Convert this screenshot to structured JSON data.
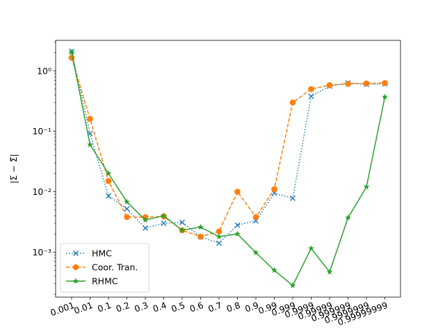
{
  "chart_data": {
    "type": "line",
    "title": "",
    "xlabel": "",
    "ylabel": "|Σ − Σ̂|",
    "yscale": "log",
    "ylim": [
      0.00018,
      3.2
    ],
    "y_ticks": [
      {
        "value": 0.001,
        "label": "10⁻³"
      },
      {
        "value": 0.01,
        "label": "10⁻²"
      },
      {
        "value": 0.1,
        "label": "10⁻¹"
      },
      {
        "value": 1,
        "label": "10⁰"
      }
    ],
    "categories": [
      "0.001",
      "0.01",
      "0.1",
      "0.2",
      "0.3",
      "0.4",
      "0.5",
      "0.6",
      "0.7",
      "0.8",
      "0.9",
      "0.99",
      "0.999",
      "0.9999",
      "0.99999",
      "0.999999",
      "0.9999999",
      "0.99999999"
    ],
    "legend_position": "lower-left",
    "grid": false,
    "series": [
      {
        "name": "HMC",
        "color": "#1f77b4",
        "linestyle": "dotted",
        "marker": "x",
        "values": [
          2.1,
          0.092,
          0.0085,
          0.0052,
          0.0025,
          0.003,
          0.0031,
          0.0018,
          0.0014,
          0.0028,
          0.0033,
          0.0095,
          0.0078,
          0.38,
          0.56,
          0.63,
          0.6,
          0.61
        ]
      },
      {
        "name": "Coor. Tran.",
        "color": "#ff7f0e",
        "linestyle": "dashed",
        "marker": "o",
        "values": [
          1.65,
          0.16,
          0.015,
          0.0038,
          0.0038,
          0.0039,
          0.0023,
          0.0018,
          0.0022,
          0.01,
          0.0038,
          0.011,
          0.3,
          0.5,
          0.58,
          0.61,
          0.62,
          0.63
        ]
      },
      {
        "name": "RHMC",
        "color": "#2ca02c",
        "linestyle": "solid",
        "marker": "*",
        "values": [
          2.05,
          0.06,
          0.02,
          0.0068,
          0.0034,
          0.004,
          0.0023,
          0.0026,
          0.0018,
          0.002,
          0.00098,
          0.0005,
          0.00028,
          0.00115,
          0.00047,
          0.0037,
          0.012,
          0.37
        ]
      }
    ]
  }
}
